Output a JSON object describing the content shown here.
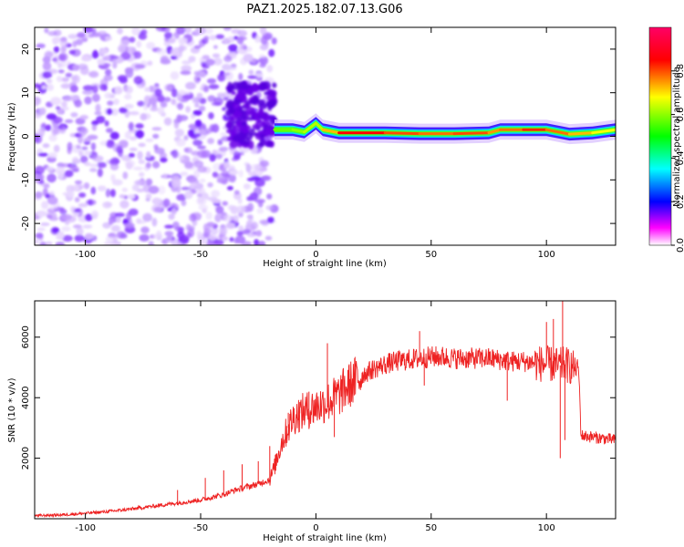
{
  "title": "PAZ1.2025.182.07.13.G06",
  "chart_data": [
    {
      "type": "heatmap",
      "xlabel": "Height of straight line (km)",
      "ylabel": "Frequency (Hz)",
      "xlim": [
        -122,
        130
      ],
      "ylim": [
        -25,
        25
      ],
      "x_ticks": [
        -100,
        -50,
        0,
        50,
        100
      ],
      "y_ticks": [
        -20,
        -10,
        0,
        10,
        20
      ],
      "grid": false,
      "colorbar": {
        "label": "Normalized spectral amplitude",
        "range": [
          0,
          1
        ],
        "ticks": [
          0.0,
          0.2,
          0.4,
          0.6,
          0.8
        ],
        "colors": [
          "#ffffff",
          "#ff00ff",
          "#0000ff",
          "#00ffff",
          "#00ff00",
          "#ffff00",
          "#ff0000",
          "#ff0066"
        ]
      },
      "noise_region": {
        "x": [
          -122,
          -18
        ],
        "y": [
          -25,
          25
        ],
        "amplitude_range": [
          0.0,
          0.15
        ]
      },
      "cluster_region": {
        "x": [
          -38,
          -18
        ],
        "y": [
          -2,
          12
        ],
        "amplitude_range": [
          0.1,
          0.2
        ]
      },
      "signal_band": [
        {
          "x": -18,
          "freq": 1.5,
          "amp": 0.55
        },
        {
          "x": -10,
          "freq": 1.5,
          "amp": 0.6
        },
        {
          "x": -5,
          "freq": 1.0,
          "amp": 0.6
        },
        {
          "x": 0,
          "freq": 3.0,
          "amp": 0.65
        },
        {
          "x": 3,
          "freq": 1.5,
          "amp": 0.6
        },
        {
          "x": 10,
          "freq": 0.8,
          "amp": 0.85
        },
        {
          "x": 30,
          "freq": 0.8,
          "amp": 0.85
        },
        {
          "x": 45,
          "freq": 0.6,
          "amp": 0.75
        },
        {
          "x": 60,
          "freq": 0.6,
          "amp": 0.8
        },
        {
          "x": 75,
          "freq": 0.8,
          "amp": 0.8
        },
        {
          "x": 80,
          "freq": 1.5,
          "amp": 0.7
        },
        {
          "x": 90,
          "freq": 1.5,
          "amp": 0.85
        },
        {
          "x": 100,
          "freq": 1.5,
          "amp": 0.8
        },
        {
          "x": 110,
          "freq": 0.5,
          "amp": 0.75
        },
        {
          "x": 120,
          "freq": 0.8,
          "amp": 0.7
        },
        {
          "x": 130,
          "freq": 1.5,
          "amp": 0.65
        }
      ]
    },
    {
      "type": "line",
      "xlabel": "Height of straight line (km)",
      "ylabel": "SNR (10 * v/v)",
      "xlim": [
        -122,
        130
      ],
      "ylim": [
        0,
        7200
      ],
      "x_ticks": [
        -100,
        -50,
        0,
        50,
        100
      ],
      "y_ticks": [
        2000,
        4000,
        6000
      ],
      "grid": false,
      "series": [
        {
          "color": "#ee2222",
          "x": [
            -122,
            -110,
            -100,
            -90,
            -80,
            -70,
            -60,
            -50,
            -40,
            -35,
            -30,
            -25,
            -20,
            -18,
            -15,
            -12,
            -10,
            -8,
            -5,
            -3,
            0,
            5,
            10,
            15,
            20,
            25,
            30,
            35,
            40,
            45,
            50,
            55,
            60,
            65,
            70,
            75,
            80,
            85,
            90,
            95,
            100,
            103,
            105,
            108,
            112,
            114,
            115,
            120,
            125,
            130
          ],
          "y": [
            100,
            130,
            180,
            240,
            320,
            420,
            520,
            620,
            800,
            950,
            1050,
            1150,
            1300,
            1700,
            2500,
            3000,
            3300,
            3450,
            3550,
            3600,
            3700,
            3850,
            4100,
            4450,
            4750,
            4950,
            5100,
            5200,
            5250,
            5300,
            5350,
            5350,
            5300,
            5300,
            5300,
            5300,
            5250,
            5200,
            5200,
            5150,
            5100,
            5100,
            5050,
            5100,
            5000,
            4950,
            2750,
            2700,
            2650,
            2600
          ],
          "spikes": [
            {
              "x": -60,
              "y": 950
            },
            {
              "x": -48,
              "y": 1350
            },
            {
              "x": -40,
              "y": 1600
            },
            {
              "x": -32,
              "y": 1800
            },
            {
              "x": -25,
              "y": 1900
            },
            {
              "x": -20,
              "y": 2400
            },
            {
              "x": -12,
              "y": 3500
            },
            {
              "x": -7,
              "y": 3700
            },
            {
              "x": -3,
              "y": 4200
            },
            {
              "x": 5,
              "y": 5800
            },
            {
              "x": 8,
              "y": 2700
            },
            {
              "x": 45,
              "y": 6200
            },
            {
              "x": 47,
              "y": 4400
            },
            {
              "x": 83,
              "y": 3900
            },
            {
              "x": 100,
              "y": 6500
            },
            {
              "x": 103,
              "y": 6600
            },
            {
              "x": 106,
              "y": 2000
            },
            {
              "x": 107,
              "y": 7200
            },
            {
              "x": 108,
              "y": 2600
            }
          ]
        }
      ]
    }
  ]
}
